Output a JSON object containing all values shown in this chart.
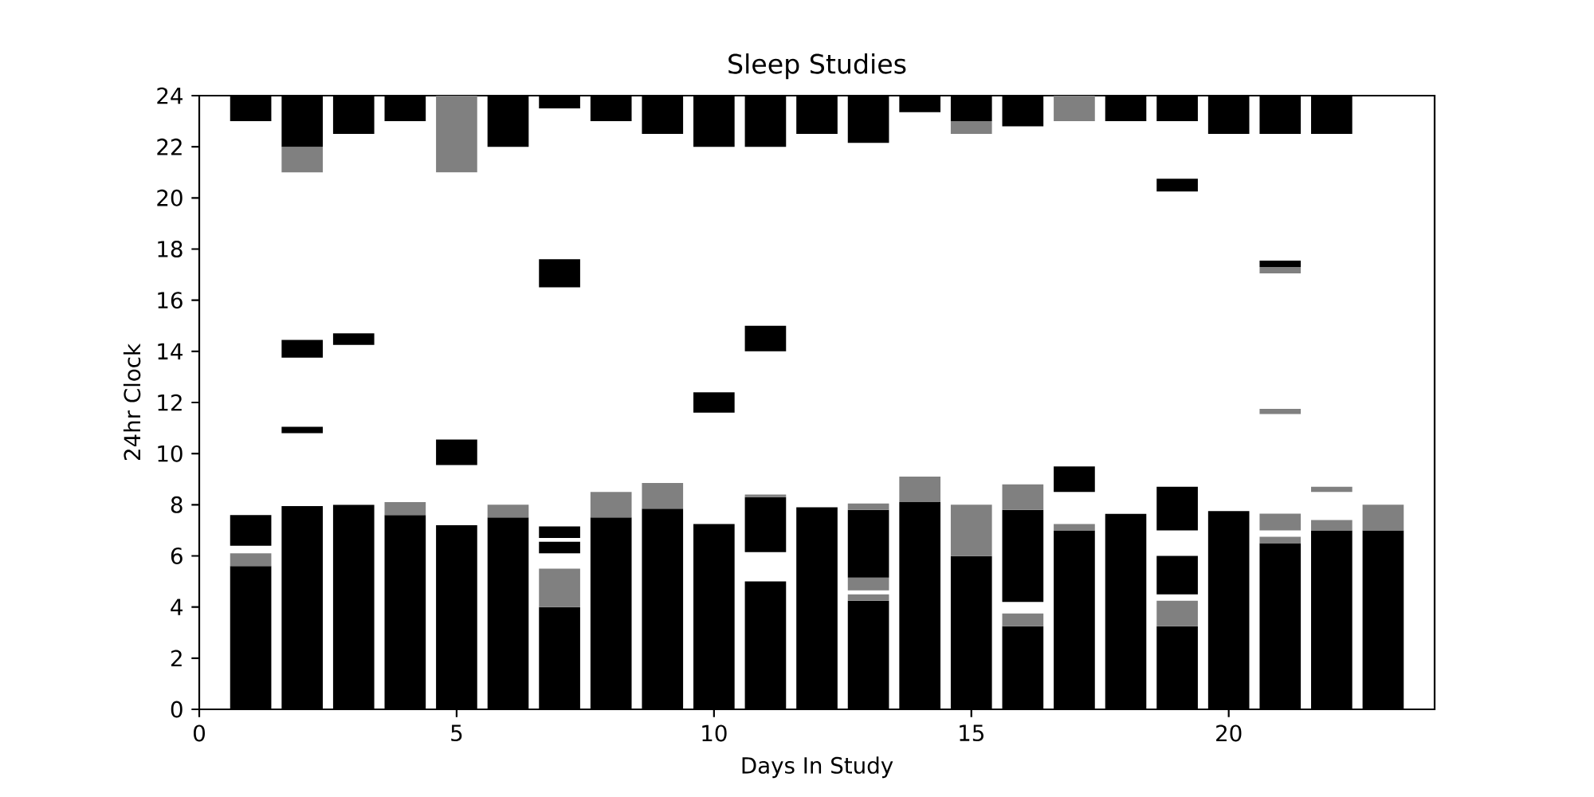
{
  "chart_data": {
    "type": "bar",
    "title": "Sleep Studies",
    "xlabel": "Days In Study",
    "ylabel": "24hr Clock",
    "x": [
      1,
      2,
      3,
      4,
      5,
      6,
      7,
      8,
      9,
      10,
      11,
      12,
      13,
      14,
      15,
      16,
      17,
      18,
      19,
      20,
      21,
      22,
      23
    ],
    "xlim": [
      0,
      24
    ],
    "ylim": [
      0,
      24
    ],
    "xticks": [
      0,
      5,
      10,
      15,
      20
    ],
    "yticks": [
      0,
      2,
      4,
      6,
      8,
      10,
      12,
      14,
      16,
      18,
      20,
      22,
      24
    ],
    "series": [
      {
        "base": [
          0,
          0,
          0,
          0,
          0,
          0,
          0,
          0,
          0,
          0,
          0,
          0,
          0,
          0,
          0,
          0,
          0,
          0,
          0,
          0,
          0,
          0,
          0
        ],
        "values": [
          5.6,
          7.95,
          8,
          7.6,
          7.2,
          7.5,
          4,
          7.5,
          7.85,
          7.25,
          5,
          7.9,
          4.25,
          8.1,
          6,
          3.25,
          7,
          7.65,
          3.25,
          7.75,
          6.5,
          7,
          7
        ],
        "colors": [
          "#000000",
          "#000000",
          "#000000",
          "#000000",
          "#000000",
          "#000000",
          "#000000",
          "#000000",
          "#000000",
          "#000000",
          "#000000",
          "#000000",
          "#000000",
          "#000000",
          "#000000",
          "#000000",
          "#000000",
          "#000000",
          "#000000",
          "#000000",
          "#000000",
          "#000000",
          "#000000"
        ]
      },
      {
        "base": [
          5.6,
          10.8,
          14.25,
          7.6,
          9.55,
          7.5,
          4,
          7.5,
          7.85,
          11.6,
          6.15,
          22.5,
          4.25,
          8.1,
          6,
          3.25,
          7,
          23,
          3.25,
          22.5,
          6.5,
          7,
          7
        ],
        "values": [
          0.5,
          0.25,
          0.45,
          0.5,
          1,
          0.5,
          1.5,
          1,
          1,
          0.8,
          2.15,
          1.5,
          0.25,
          1,
          2,
          0.5,
          0.25,
          1,
          1,
          1.5,
          0.25,
          0.4,
          1
        ],
        "colors": [
          "#808080",
          "#000000",
          "#000000",
          "#808080",
          "#000000",
          "#808080",
          "#808080",
          "#808080",
          "#808080",
          "#000000",
          "#000000",
          "#000000",
          "#808080",
          "#808080",
          "#808080",
          "#808080",
          "#808080",
          "#000000",
          "#808080",
          "#000000",
          "#808080",
          "#808080",
          "#808080"
        ]
      },
      {
        "base": [
          6.4,
          13.75,
          22.5,
          23,
          21,
          22,
          6.1,
          23,
          22.5,
          22,
          8.3,
          null,
          4.65,
          23.35,
          22.5,
          4.2,
          8.5,
          null,
          4.5,
          null,
          7,
          8.5,
          null
        ],
        "values": [
          1.2,
          0.7,
          1.5,
          1,
          3,
          2,
          0.45,
          1,
          1.5,
          2,
          0.1,
          null,
          0.5,
          0.65,
          0.5,
          3.6,
          1,
          null,
          1.5,
          null,
          0.65,
          0.2,
          null
        ],
        "colors": [
          "#000000",
          "#000000",
          "#000000",
          "#000000",
          "#808080",
          "#000000",
          "#000000",
          "#000000",
          "#000000",
          "#000000",
          "#808080",
          null,
          "#808080",
          "#000000",
          "#808080",
          "#000000",
          "#000000",
          null,
          "#000000",
          null,
          "#808080",
          "#808080",
          null
        ]
      },
      {
        "base": [
          23,
          21,
          null,
          null,
          null,
          null,
          6.7,
          null,
          null,
          null,
          14,
          null,
          5.15,
          null,
          23,
          7.8,
          23,
          null,
          7,
          null,
          11.55,
          22.5,
          null
        ],
        "values": [
          1,
          1,
          null,
          null,
          null,
          null,
          0.45,
          null,
          null,
          null,
          1,
          null,
          2.65,
          null,
          1,
          1,
          1,
          null,
          1.7,
          null,
          0.2,
          1.5,
          null
        ],
        "colors": [
          "#000000",
          "#808080",
          null,
          null,
          null,
          null,
          "#000000",
          null,
          null,
          null,
          "#000000",
          null,
          "#000000",
          null,
          "#000000",
          "#808080",
          "#808080",
          null,
          "#000000",
          null,
          "#808080",
          "#000000",
          null
        ]
      },
      {
        "base": [
          null,
          22,
          null,
          null,
          null,
          null,
          16.5,
          null,
          null,
          null,
          22,
          null,
          7.8,
          null,
          null,
          22.8,
          null,
          null,
          20.25,
          null,
          17.05,
          null,
          null
        ],
        "values": [
          null,
          2,
          null,
          null,
          null,
          null,
          1.1,
          null,
          null,
          null,
          2,
          null,
          0.25,
          null,
          null,
          1.2,
          null,
          null,
          0.5,
          null,
          0.25,
          null,
          null
        ],
        "colors": [
          null,
          "#000000",
          null,
          null,
          null,
          null,
          "#000000",
          null,
          null,
          null,
          "#000000",
          null,
          "#808080",
          null,
          null,
          "#000000",
          null,
          null,
          "#000000",
          null,
          "#808080",
          null,
          null
        ]
      },
      {
        "base": [
          null,
          null,
          null,
          null,
          null,
          null,
          23.5,
          null,
          null,
          null,
          null,
          null,
          22.15,
          null,
          null,
          null,
          null,
          null,
          23,
          null,
          17.3,
          null,
          null
        ],
        "values": [
          null,
          null,
          null,
          null,
          null,
          null,
          0.5,
          null,
          null,
          null,
          null,
          null,
          1.85,
          null,
          null,
          null,
          null,
          null,
          1,
          null,
          0.25,
          null,
          null
        ],
        "colors": [
          null,
          null,
          null,
          null,
          null,
          null,
          "#000000",
          null,
          null,
          null,
          null,
          null,
          "#000000",
          null,
          null,
          null,
          null,
          null,
          "#000000",
          null,
          "#000000",
          null,
          null
        ]
      },
      {
        "base": [
          null,
          null,
          null,
          null,
          null,
          null,
          null,
          null,
          null,
          null,
          null,
          null,
          null,
          null,
          null,
          null,
          null,
          null,
          null,
          null,
          22.5,
          null,
          null
        ],
        "values": [
          null,
          null,
          null,
          null,
          null,
          null,
          null,
          null,
          null,
          null,
          null,
          null,
          null,
          null,
          null,
          null,
          null,
          null,
          null,
          null,
          1.5,
          null,
          null
        ],
        "colors": [
          null,
          null,
          null,
          null,
          null,
          null,
          null,
          null,
          null,
          null,
          null,
          null,
          null,
          null,
          null,
          null,
          null,
          null,
          null,
          null,
          "#000000",
          null,
          null
        ]
      }
    ]
  }
}
